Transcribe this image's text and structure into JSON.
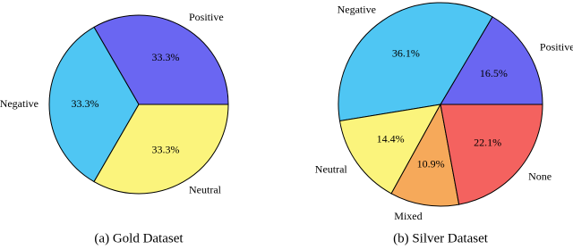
{
  "chart_data": [
    {
      "type": "pie",
      "title": "(a) Gold Dataset",
      "categories": [
        "Positive",
        "Negative",
        "Neutral"
      ],
      "values": [
        33.3,
        33.3,
        33.3
      ],
      "value_labels": [
        "33.3%",
        "33.3%",
        "33.3%"
      ],
      "colors": [
        "#6a66f2",
        "#4fc6f3",
        "#fbf47c"
      ]
    },
    {
      "type": "pie",
      "title": "(b) Silver Dataset",
      "categories": [
        "Positive",
        "Negative",
        "Neutral",
        "Mixed",
        "None"
      ],
      "values": [
        16.5,
        36.1,
        14.4,
        10.9,
        22.1
      ],
      "value_labels": [
        "16.5%",
        "36.1%",
        "14.4%",
        "10.9%",
        "22.1%"
      ],
      "colors": [
        "#6a66f2",
        "#4fc6f3",
        "#fbf47c",
        "#f6a95a",
        "#f4625f"
      ]
    }
  ]
}
